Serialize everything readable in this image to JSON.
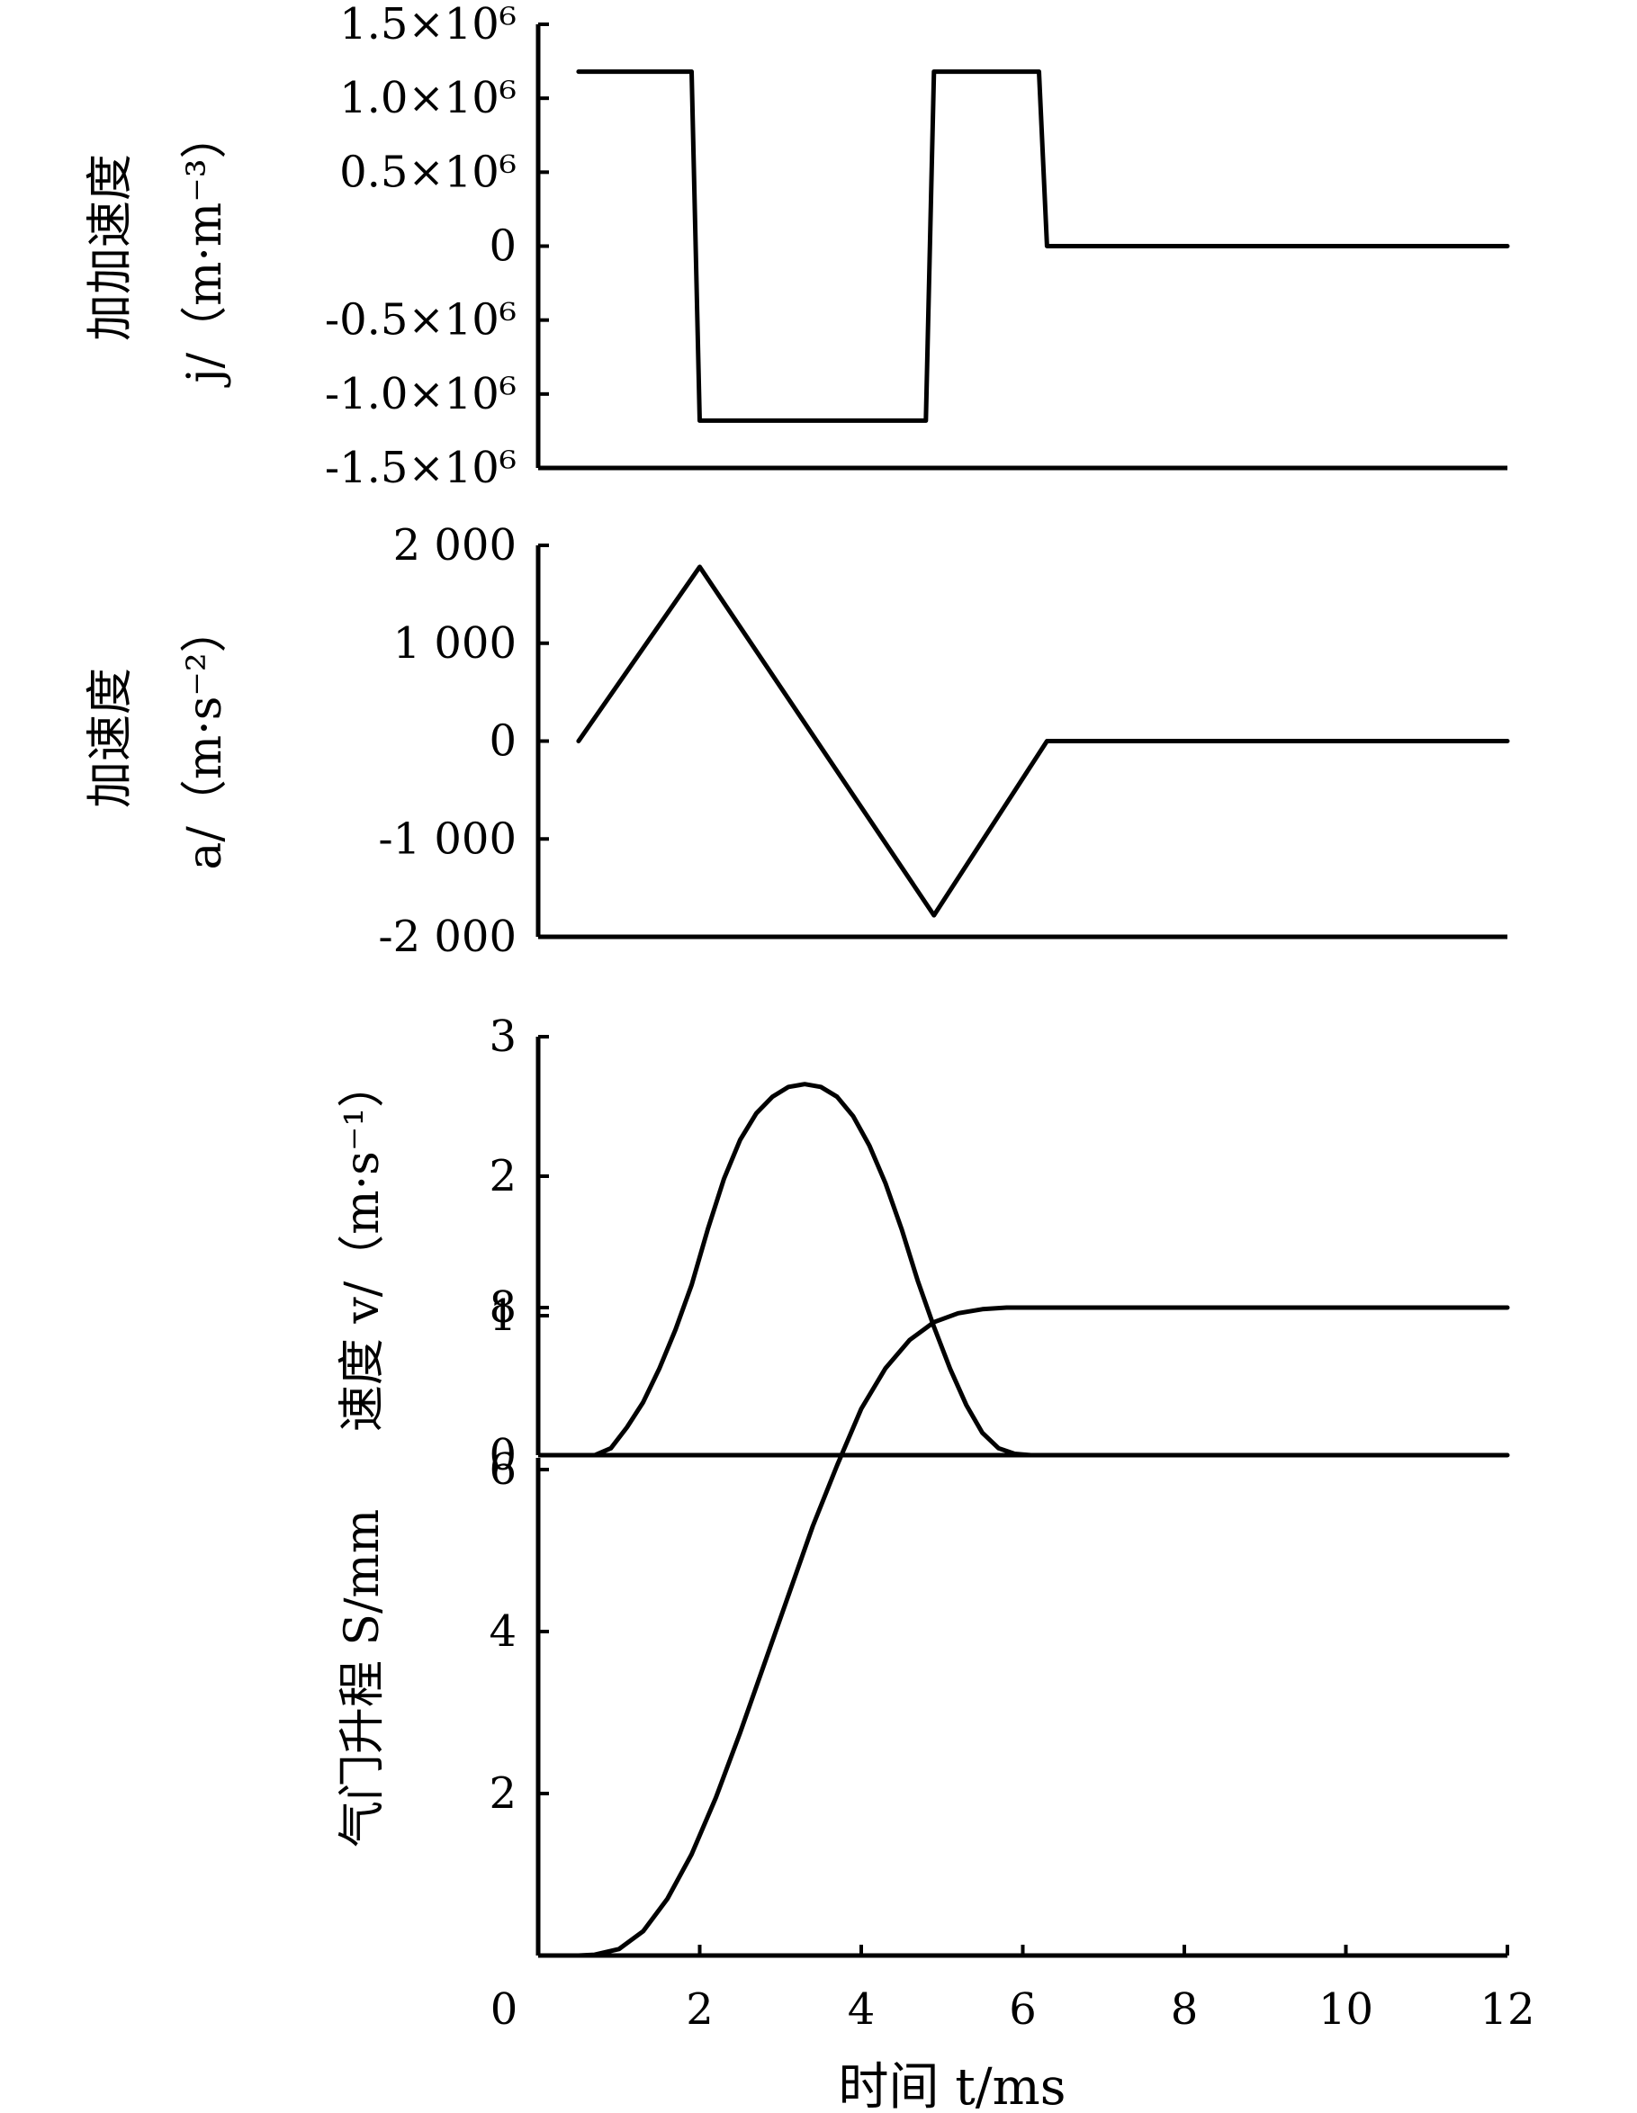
{
  "chart_data": [
    {
      "type": "line",
      "panel": "jerk",
      "ylabel_lines": [
        "加加速度",
        "j/（m·m⁻³）"
      ],
      "ytick_values": [
        -1500000,
        -1000000,
        -500000,
        0,
        500000,
        1000000,
        1500000
      ],
      "ytick_labels": [
        "-1.5×10⁶",
        "-1.0×10⁶",
        "-0.5×10⁶",
        "0",
        "0.5×10⁶",
        "1.0×10⁶",
        "1.5×10⁶"
      ],
      "ylim": [
        -1500000,
        1500000
      ],
      "grid": false,
      "x": [
        0.5,
        1.9,
        2.0,
        4.8,
        4.9,
        6.2,
        6.3,
        12.0
      ],
      "y": [
        1180000,
        1180000,
        -1180000,
        -1180000,
        1180000,
        1180000,
        0,
        0
      ]
    },
    {
      "type": "line",
      "panel": "acceleration",
      "ylabel_lines": [
        "加速度",
        "a/（m·s⁻²）"
      ],
      "ytick_values": [
        -2000,
        -1000,
        0,
        1000,
        2000
      ],
      "ytick_labels": [
        "-2 000",
        "-1 000",
        "0",
        "1 000",
        "2 000"
      ],
      "ylim": [
        -2000,
        2000
      ],
      "grid": false,
      "x": [
        0.5,
        2.0,
        4.9,
        6.3,
        12.0
      ],
      "y": [
        0,
        1780,
        -1780,
        0,
        0
      ]
    },
    {
      "type": "line",
      "panel": "velocity",
      "ylabel_lines": [
        "速度 v/（m·s⁻¹）"
      ],
      "ytick_values": [
        0,
        1,
        2,
        3
      ],
      "ytick_labels": [
        "0",
        "1",
        "2",
        "3"
      ],
      "ylim": [
        0,
        3
      ],
      "grid": false,
      "x": [
        0.5,
        0.7,
        0.9,
        1.1,
        1.3,
        1.5,
        1.7,
        1.9,
        2.1,
        2.3,
        2.5,
        2.7,
        2.9,
        3.1,
        3.3,
        3.5,
        3.7,
        3.9,
        4.1,
        4.3,
        4.5,
        4.7,
        4.9,
        5.1,
        5.3,
        5.5,
        5.7,
        5.9,
        6.1,
        6.3,
        12.0
      ],
      "y": [
        0,
        0,
        0.05,
        0.2,
        0.38,
        0.62,
        0.9,
        1.22,
        1.62,
        1.98,
        2.26,
        2.45,
        2.57,
        2.64,
        2.66,
        2.64,
        2.57,
        2.43,
        2.22,
        1.95,
        1.62,
        1.25,
        0.92,
        0.62,
        0.36,
        0.16,
        0.05,
        0.01,
        0,
        0,
        0
      ]
    },
    {
      "type": "line",
      "panel": "lift",
      "ylabel_lines": [
        "气门升程 S/mm"
      ],
      "ytick_values": [
        2,
        4,
        6,
        8
      ],
      "ytick_labels": [
        "2",
        "4",
        "6",
        "8"
      ],
      "ylim": [
        0,
        10
      ],
      "grid": false,
      "x": [
        0.5,
        0.7,
        1.0,
        1.3,
        1.6,
        1.9,
        2.2,
        2.5,
        2.8,
        3.1,
        3.4,
        3.7,
        4.0,
        4.3,
        4.6,
        4.9,
        5.2,
        5.5,
        5.8,
        12.0
      ],
      "y": [
        0,
        0.01,
        0.08,
        0.3,
        0.7,
        1.25,
        1.95,
        2.75,
        3.6,
        4.45,
        5.3,
        6.05,
        6.75,
        7.25,
        7.6,
        7.82,
        7.93,
        7.98,
        8.0,
        8.0
      ]
    }
  ],
  "x_axis": {
    "tick_values": [
      0,
      2,
      4,
      6,
      8,
      10,
      12
    ],
    "tick_labels": [
      "0",
      "2",
      "4",
      "6",
      "8",
      "10",
      "12"
    ],
    "xlim": [
      0,
      12
    ],
    "xlabel": "时间 t/ms"
  }
}
